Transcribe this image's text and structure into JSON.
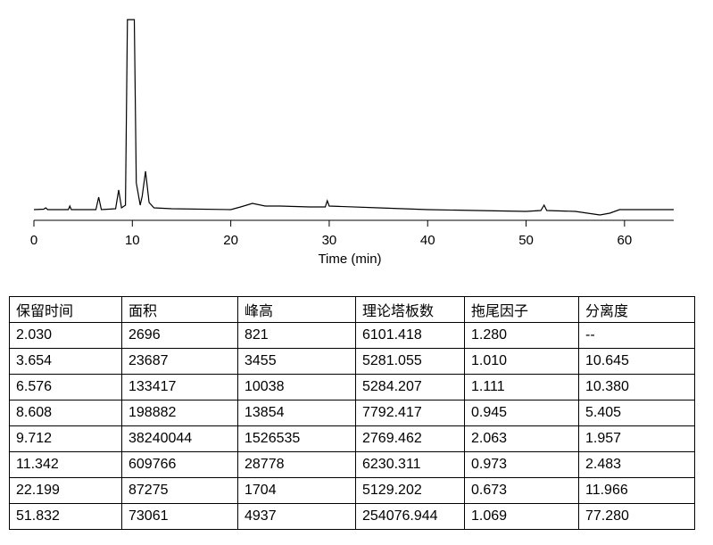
{
  "chart_data": {
    "type": "line",
    "xlabel": "Time (min)",
    "x": [
      0,
      1,
      1.2,
      1.4,
      3.5,
      3.65,
      3.8,
      6.3,
      6.58,
      6.85,
      8.3,
      8.61,
      8.9,
      9.3,
      9.5,
      10.2,
      10.4,
      10.8,
      11.0,
      11.34,
      11.7,
      12.2,
      14,
      20,
      21,
      22.2,
      23.5,
      25,
      28,
      29.6,
      29.8,
      30,
      35,
      40,
      45,
      50,
      51.5,
      51.83,
      52.1,
      55,
      57.5,
      58.5,
      59.5,
      62,
      65
    ],
    "values": [
      0,
      0.5,
      2,
      0,
      0,
      4,
      0,
      0,
      14,
      0,
      1,
      22,
      2,
      5,
      213,
      213,
      30,
      5,
      15,
      43,
      8,
      2,
      1,
      0,
      3,
      7,
      4,
      4,
      3,
      3,
      10,
      4,
      2,
      0,
      -1,
      -2,
      -1,
      5,
      -1,
      -2,
      -6,
      -4,
      0,
      0,
      0
    ],
    "color": "#000000",
    "xlim": [
      0,
      65
    ],
    "xticks": [
      0,
      10,
      20,
      30,
      40,
      50,
      60
    ],
    "ylim": [
      -12,
      213
    ]
  },
  "table": {
    "columns": [
      "保留时间",
      "面积",
      "峰高",
      "理论塔板数",
      "拖尾因子",
      "分离度"
    ],
    "rows": [
      [
        "2.030",
        "2696",
        "821",
        "6101.418",
        "1.280",
        "--"
      ],
      [
        "3.654",
        "23687",
        "3455",
        "5281.055",
        "1.010",
        "10.645"
      ],
      [
        "6.576",
        "133417",
        "10038",
        "5284.207",
        "1.111",
        "10.380"
      ],
      [
        "8.608",
        "198882",
        "13854",
        "7792.417",
        "0.945",
        "5.405"
      ],
      [
        "9.712",
        "38240044",
        "1526535",
        "2769.462",
        "2.063",
        "1.957"
      ],
      [
        "11.342",
        "609766",
        "28778",
        "6230.311",
        "0.973",
        "2.483"
      ],
      [
        "22.199",
        "87275",
        "1704",
        "5129.202",
        "0.673",
        "11.966"
      ],
      [
        "51.832",
        "73061",
        "4937",
        "254076.944",
        "1.069",
        "77.280"
      ]
    ]
  }
}
